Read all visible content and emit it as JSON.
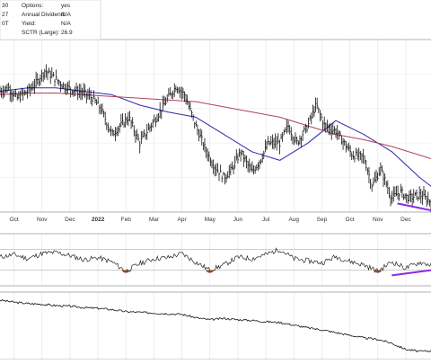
{
  "info": {
    "left_values": [
      "30",
      "27",
      "0T"
    ],
    "rows": [
      {
        "label": "Options:",
        "value": "yes"
      },
      {
        "label": "Annual Dividend:",
        "value": "N/A"
      },
      {
        "label": "Yield:",
        "value": "N/A"
      },
      {
        "label": "SCTR (Large):",
        "value": "26.9"
      }
    ]
  },
  "chart_data": {
    "type": "line",
    "x_tick_labels": [
      "Oct",
      "Nov",
      "Dec",
      "2022",
      "Feb",
      "Mar",
      "Apr",
      "May",
      "Jun",
      "Jul",
      "Aug",
      "Sep",
      "Oct",
      "Nov",
      "Dec"
    ],
    "x_range": [
      0,
      15.4
    ],
    "grid": true,
    "price_panel": {
      "chart_style": "ohlc bars",
      "y_range": [
        0,
        100
      ],
      "price": {
        "x": [
          0,
          0.3,
          0.6,
          1.0,
          1.3,
          1.6,
          2.0,
          2.3,
          2.6,
          3.0,
          3.3,
          3.6,
          4.0,
          4.3,
          4.6,
          5.0,
          5.3,
          5.6,
          6.0,
          6.3,
          6.6,
          7.0,
          7.3,
          7.6,
          8.0,
          8.3,
          8.6,
          9.0,
          9.3,
          9.6,
          10.0,
          10.3,
          10.6,
          11.0,
          11.3,
          11.6,
          12.0,
          12.3,
          12.6,
          13.0,
          13.3,
          13.6,
          14.0,
          14.3,
          14.6,
          15.0,
          15.4
        ],
        "y": [
          70,
          72,
          66,
          70,
          75,
          82,
          77,
          73,
          71,
          69,
          66,
          60,
          45,
          50,
          55,
          40,
          48,
          55,
          66,
          73,
          68,
          50,
          38,
          28,
          20,
          25,
          35,
          23,
          30,
          40,
          40,
          50,
          40,
          50,
          62,
          50,
          47,
          40,
          33,
          32,
          15,
          25,
          8,
          12,
          8,
          10,
          6
        ]
      },
      "moving_averages": [
        {
          "color": "#2a2aa8",
          "x": [
            0,
            1,
            2,
            3,
            4,
            5,
            6,
            7,
            8,
            9,
            10,
            11,
            12,
            13,
            14,
            15,
            15.4
          ],
          "y": [
            70,
            72,
            72,
            70,
            68,
            62,
            58,
            55,
            45,
            35,
            30,
            40,
            53,
            45,
            35,
            20,
            15
          ]
        },
        {
          "color": "#b04060",
          "x": [
            0,
            1,
            2,
            3,
            4,
            5,
            6,
            7,
            8,
            9,
            10,
            11,
            12,
            13,
            14,
            15,
            15.4
          ],
          "y": [
            68,
            69,
            69,
            68,
            67,
            66,
            65,
            64,
            61,
            58,
            55,
            50,
            45,
            42,
            38,
            33,
            31
          ]
        }
      ],
      "trendline": {
        "color": "#8a2be2",
        "x": [
          14.2,
          15.4
        ],
        "y": [
          5,
          1
        ]
      }
    },
    "oscillator_panel": {
      "y_range": [
        0,
        100
      ],
      "reference_lines": [
        30,
        70
      ],
      "values_x": [
        0,
        0.5,
        1,
        1.5,
        2,
        2.5,
        3,
        3.5,
        4,
        4.5,
        5,
        5.5,
        6,
        6.5,
        7,
        7.5,
        8,
        8.5,
        9,
        9.5,
        10,
        10.5,
        11,
        11.5,
        12,
        12.5,
        13,
        13.5,
        14,
        14.5,
        15,
        15.4
      ],
      "values_y": [
        55,
        60,
        52,
        62,
        64,
        58,
        50,
        54,
        46,
        28,
        43,
        52,
        54,
        62,
        45,
        30,
        40,
        55,
        52,
        60,
        70,
        52,
        48,
        44,
        56,
        47,
        40,
        28,
        46,
        34,
        45,
        40
      ],
      "trendline": {
        "color": "#8a2be2",
        "x": [
          14.0,
          15.4
        ],
        "y": [
          20,
          30
        ]
      }
    },
    "lower_panel": {
      "y_range": [
        0,
        100
      ],
      "values_x": [
        0,
        0.5,
        1,
        1.5,
        2,
        2.5,
        3,
        3.5,
        4,
        4.5,
        5,
        5.5,
        6,
        6.5,
        7,
        7.5,
        8,
        8.5,
        9,
        9.5,
        10,
        10.5,
        11,
        11.5,
        12,
        12.5,
        13,
        13.5,
        14,
        14.5,
        15,
        15.4
      ],
      "values_y": [
        88,
        85,
        83,
        82,
        80,
        79,
        77,
        76,
        74,
        71,
        70,
        69,
        68,
        67,
        62,
        59,
        61,
        59,
        58,
        56,
        55,
        51,
        47,
        44,
        40,
        36,
        32,
        30,
        24,
        15,
        12,
        13
      ]
    }
  }
}
